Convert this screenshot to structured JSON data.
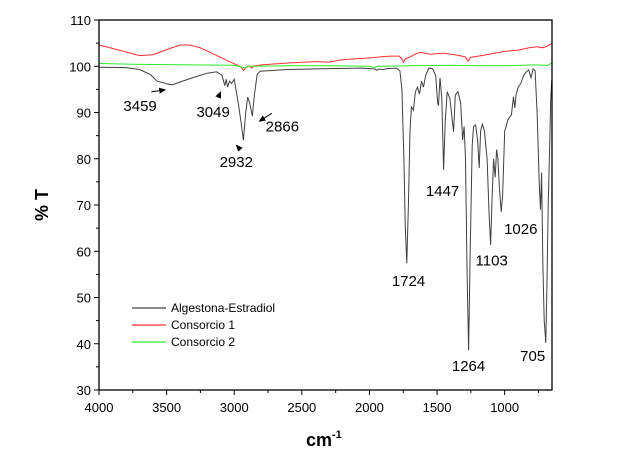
{
  "chart_data": {
    "type": "line",
    "title": "",
    "xlabel": "cm",
    "xlabel_sup": "-1",
    "ylabel": "% T",
    "xlim": [
      4000,
      650
    ],
    "ylim": [
      30,
      110
    ],
    "x_ticks": [
      4000,
      3500,
      3000,
      2500,
      2000,
      1500,
      1000
    ],
    "x_tick_labels": [
      "4000",
      "3500",
      "3000",
      "2500",
      "2000",
      "1500",
      "1000"
    ],
    "y_ticks": [
      30,
      40,
      50,
      60,
      70,
      80,
      90,
      100,
      110
    ],
    "y_tick_labels": [
      "30",
      "40",
      "50",
      "60",
      "70",
      "80",
      "90",
      "100",
      "110"
    ],
    "grid": false,
    "legend_placement": "bottom-left",
    "series": [
      {
        "name": "Algestona-Estradiol",
        "color": "#404040",
        "points": [
          [
            4000,
            99.8
          ],
          [
            3800,
            99.7
          ],
          [
            3700,
            99.3
          ],
          [
            3620,
            98.2
          ],
          [
            3570,
            96.8
          ],
          [
            3500,
            96.2
          ],
          [
            3459,
            96.0
          ],
          [
            3400,
            96.6
          ],
          [
            3300,
            97.6
          ],
          [
            3200,
            98.5
          ],
          [
            3130,
            98.8
          ],
          [
            3090,
            98.0
          ],
          [
            3070,
            95.8
          ],
          [
            3060,
            97.2
          ],
          [
            3049,
            95.5
          ],
          [
            3035,
            96.8
          ],
          [
            3020,
            96.3
          ],
          [
            3000,
            97.2
          ],
          [
            2970,
            92
          ],
          [
            2950,
            88
          ],
          [
            2932,
            84.0
          ],
          [
            2915,
            90
          ],
          [
            2900,
            93.3
          ],
          [
            2885,
            92
          ],
          [
            2866,
            89.2
          ],
          [
            2850,
            94
          ],
          [
            2830,
            98.3
          ],
          [
            2807,
            98.9
          ],
          [
            2600,
            99.3
          ],
          [
            2300,
            99.5
          ],
          [
            2050,
            99.6
          ],
          [
            1960,
            99.4
          ],
          [
            1945,
            99.1
          ],
          [
            1930,
            99.4
          ],
          [
            1900,
            99.3
          ],
          [
            1870,
            99.5
          ],
          [
            1800,
            99.6
          ],
          [
            1775,
            99.0
          ],
          [
            1760,
            95
          ],
          [
            1745,
            80
          ],
          [
            1735,
            65
          ],
          [
            1724,
            57.4
          ],
          [
            1712,
            70
          ],
          [
            1700,
            86
          ],
          [
            1690,
            91.2
          ],
          [
            1675,
            90.5
          ],
          [
            1660,
            94.5
          ],
          [
            1645,
            95.5
          ],
          [
            1630,
            94
          ],
          [
            1615,
            96.8
          ],
          [
            1600,
            95.5
          ],
          [
            1585,
            98.0
          ],
          [
            1560,
            99.6
          ],
          [
            1533,
            99.5
          ],
          [
            1510,
            98
          ],
          [
            1495,
            92
          ],
          [
            1489,
            91.5
          ],
          [
            1478,
            97.5
          ],
          [
            1465,
            93
          ],
          [
            1452,
            77.6
          ],
          [
            1440,
            88
          ],
          [
            1425,
            94.5
          ],
          [
            1405,
            93
          ],
          [
            1390,
            89
          ],
          [
            1378,
            85.8
          ],
          [
            1365,
            93.8
          ],
          [
            1345,
            94.5
          ],
          [
            1325,
            92
          ],
          [
            1311,
            84.0
          ],
          [
            1300,
            87
          ],
          [
            1290,
            80
          ],
          [
            1278,
            55
          ],
          [
            1267,
            38.6
          ],
          [
            1255,
            60
          ],
          [
            1240,
            83
          ],
          [
            1230,
            87
          ],
          [
            1215,
            87.3
          ],
          [
            1200,
            84
          ],
          [
            1188,
            78
          ],
          [
            1178,
            86
          ],
          [
            1165,
            87.5
          ],
          [
            1150,
            86
          ],
          [
            1130,
            80
          ],
          [
            1115,
            68
          ],
          [
            1104,
            61.4
          ],
          [
            1092,
            72
          ],
          [
            1082,
            80
          ],
          [
            1070,
            76
          ],
          [
            1060,
            82
          ],
          [
            1050,
            80
          ],
          [
            1040,
            74
          ],
          [
            1026,
            68.5
          ],
          [
            1015,
            72
          ],
          [
            1000,
            86
          ],
          [
            975,
            88.5
          ],
          [
            950,
            89.5
          ],
          [
            935,
            93.4
          ],
          [
            925,
            91
          ],
          [
            915,
            94
          ],
          [
            900,
            95.5
          ],
          [
            881,
            96.3
          ],
          [
            860,
            98
          ],
          [
            840,
            98.8
          ],
          [
            822,
            99.2
          ],
          [
            805,
            97.5
          ],
          [
            790,
            99.4
          ],
          [
            775,
            99.0
          ],
          [
            760,
            90
          ],
          [
            745,
            75
          ],
          [
            735,
            69
          ],
          [
            727,
            77
          ],
          [
            718,
            58
          ],
          [
            708,
            45
          ],
          [
            700,
            42
          ],
          [
            696,
            40.2
          ],
          [
            688,
            52
          ],
          [
            678,
            70
          ],
          [
            668,
            82
          ],
          [
            660,
            92
          ],
          [
            652,
            97
          ]
        ]
      },
      {
        "name": "Consorcio 1",
        "color": "#ff3030",
        "points": [
          [
            4000,
            104.6
          ],
          [
            3850,
            103.5
          ],
          [
            3700,
            102.3
          ],
          [
            3600,
            102.5
          ],
          [
            3500,
            103.6
          ],
          [
            3400,
            104.6
          ],
          [
            3330,
            104.6
          ],
          [
            3250,
            104.0
          ],
          [
            3150,
            102.6
          ],
          [
            3050,
            101.2
          ],
          [
            2980,
            100.3
          ],
          [
            2950,
            99.8
          ],
          [
            2930,
            99.1
          ],
          [
            2910,
            99.8
          ],
          [
            2890,
            100.1
          ],
          [
            2870,
            99.6
          ],
          [
            2850,
            100.1
          ],
          [
            2800,
            100.3
          ],
          [
            2600,
            100.7
          ],
          [
            2400,
            101.0
          ],
          [
            2300,
            100.9
          ],
          [
            2200,
            101.4
          ],
          [
            2000,
            101.8
          ],
          [
            1850,
            102.2
          ],
          [
            1780,
            102.2
          ],
          [
            1760,
            101.6
          ],
          [
            1748,
            100.9
          ],
          [
            1735,
            101.6
          ],
          [
            1700,
            102.0
          ],
          [
            1650,
            102.8
          ],
          [
            1622,
            103.0
          ],
          [
            1550,
            102.6
          ],
          [
            1450,
            102.8
          ],
          [
            1350,
            102.4
          ],
          [
            1290,
            102.0
          ],
          [
            1270,
            101.1
          ],
          [
            1255,
            101.9
          ],
          [
            1150,
            102.4
          ],
          [
            1000,
            103.2
          ],
          [
            900,
            103.5
          ],
          [
            820,
            104.0
          ],
          [
            760,
            104.2
          ],
          [
            720,
            104.0
          ],
          [
            690,
            104.3
          ],
          [
            652,
            104.9
          ]
        ]
      },
      {
        "name": "Consorcio 2",
        "color": "#30e830",
        "points": [
          [
            4000,
            100.6
          ],
          [
            3700,
            100.4
          ],
          [
            3300,
            100.3
          ],
          [
            3000,
            100.2
          ],
          [
            2940,
            99.8
          ],
          [
            2920,
            99.6
          ],
          [
            2900,
            100.0
          ],
          [
            2600,
            100.1
          ],
          [
            2300,
            100.1
          ],
          [
            2000,
            100.0
          ],
          [
            1960,
            99.7
          ],
          [
            1940,
            100.0
          ],
          [
            1700,
            100.1
          ],
          [
            1400,
            100.2
          ],
          [
            1200,
            100.1
          ],
          [
            1000,
            100.1
          ],
          [
            800,
            100.3
          ],
          [
            700,
            100.2
          ],
          [
            680,
            100.1
          ],
          [
            652,
            100.8
          ]
        ]
      }
    ],
    "annotations": [
      {
        "text": "3459",
        "peak": [
          3459,
          96.0
        ],
        "label_at": [
          3696,
          91.4
        ],
        "arrow": true
      },
      {
        "text": "3049",
        "peak": [
          3049,
          95.5
        ],
        "label_at": [
          3156,
          90.1
        ],
        "arrow": true
      },
      {
        "text": "2932",
        "peak": [
          2932,
          84.0
        ],
        "label_at": [
          2985,
          79.3
        ],
        "arrow": true
      },
      {
        "text": "2866",
        "peak": [
          2866,
          89.2
        ],
        "label_at": [
          2644,
          87.0
        ],
        "arrow": true
      },
      {
        "text": "1724",
        "peak": [
          1724,
          57.4
        ],
        "label_at": [
          1711,
          53.6
        ],
        "arrow": false
      },
      {
        "text": "1447",
        "peak": [
          1447,
          77.6
        ],
        "label_at": [
          1459,
          73.0
        ],
        "arrow": false
      },
      {
        "text": "1264",
        "peak": [
          1264,
          38.6
        ],
        "label_at": [
          1267,
          35.2
        ],
        "arrow": false
      },
      {
        "text": "1103",
        "peak": [
          1103,
          61.4
        ],
        "label_at": [
          1096,
          58.0
        ],
        "arrow": false
      },
      {
        "text": "1026",
        "peak": [
          1026,
          68.5
        ],
        "label_at": [
          881,
          64.8
        ],
        "arrow": false
      },
      {
        "text": "705",
        "peak": [
          705,
          40.2
        ],
        "label_at": [
          793,
          37.3
        ],
        "arrow": false
      }
    ]
  }
}
